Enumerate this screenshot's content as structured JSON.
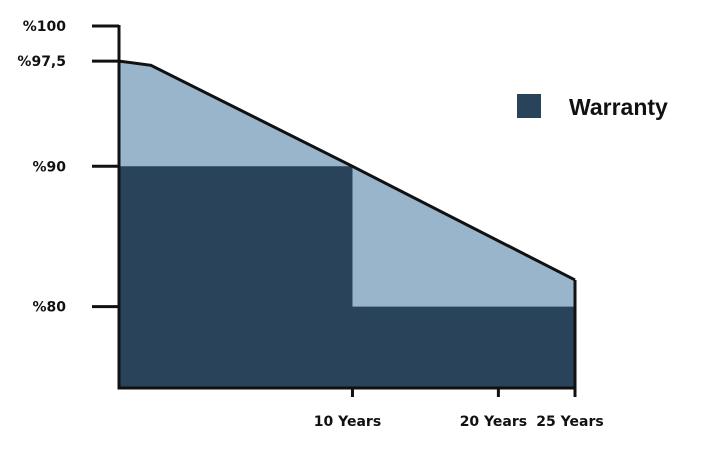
{
  "chart_data": {
    "type": "area",
    "title": "",
    "xlabel": "",
    "ylabel": "",
    "x_range": [
      0,
      25
    ],
    "y_range": [
      74.2,
      100
    ],
    "grid": false,
    "legend_position": "top-right",
    "y_ticks": [
      {
        "value": 100,
        "label": "%100"
      },
      {
        "value": 97.5,
        "label": "%97,5"
      },
      {
        "value": 90,
        "label": "%90"
      },
      {
        "value": 80,
        "label": "%80"
      }
    ],
    "x_ticks": [
      {
        "value": 12.8,
        "label": "10 Years"
      },
      {
        "value": 20.8,
        "label": "20 Years"
      },
      {
        "value": 25,
        "label": "25 Years"
      }
    ],
    "series": [
      {
        "name": "",
        "color": "#98b5cb",
        "points": [
          [
            0,
            97.5
          ],
          [
            1.75,
            97.2
          ],
          [
            12.8,
            90
          ],
          [
            25,
            81.9
          ]
        ]
      },
      {
        "name": "Warranty",
        "color": "#29435a",
        "points": [
          [
            0,
            90
          ],
          [
            12.8,
            90
          ],
          [
            12.8,
            80
          ],
          [
            25,
            80
          ]
        ]
      }
    ],
    "outline_color": "#111111"
  }
}
